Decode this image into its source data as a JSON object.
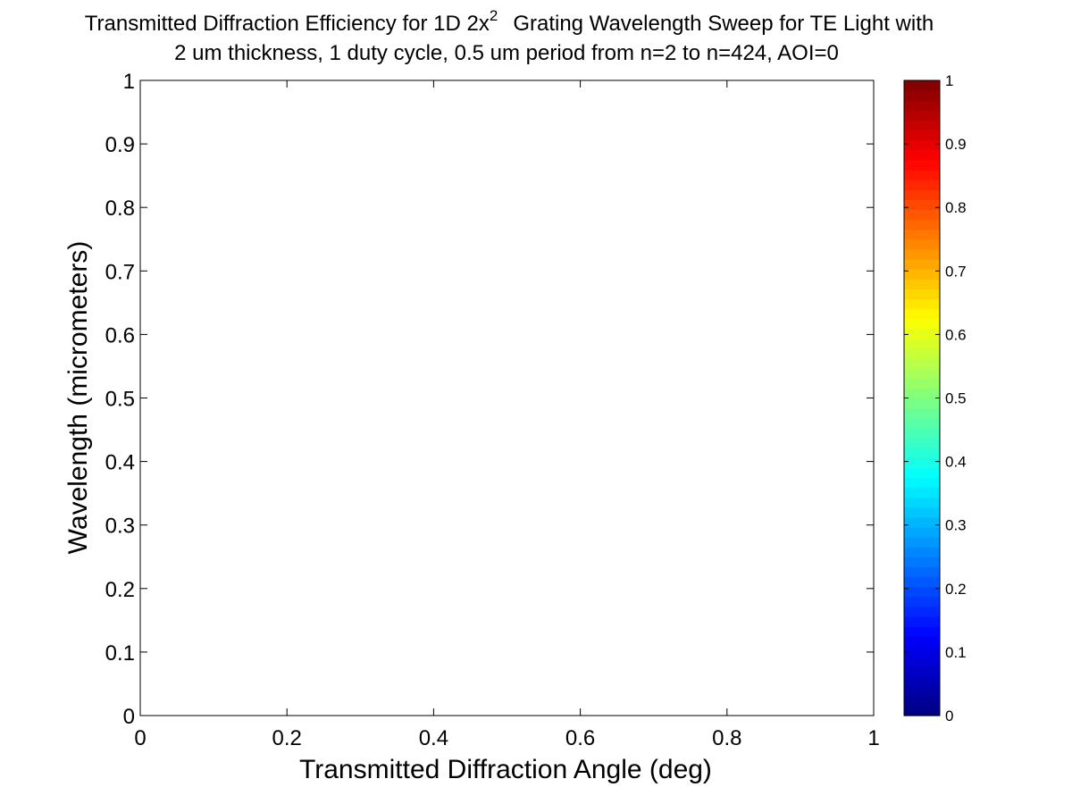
{
  "chart_data": {
    "type": "heatmap",
    "title": {
      "line1_before_sup": "Transmitted Diffraction Efficiency for 1D 2x",
      "line1_sup": "2",
      "line1_after_sup": "Grating Wavelength Sweep for TE Light with",
      "line2": "2 um thickness, 1 duty cycle, 0.5 um period from n=2 to n=424, AOI=0"
    },
    "xlabel": "Transmitted Diffraction Angle (deg)",
    "ylabel": "Wavelength (micrometers)",
    "xlim": [
      0,
      1
    ],
    "ylim": [
      0,
      1
    ],
    "xticks": [
      0,
      0.2,
      0.4,
      0.6,
      0.8,
      1
    ],
    "xtick_labels": [
      "0",
      "0.2",
      "0.4",
      "0.6",
      "0.8",
      "1"
    ],
    "yticks": [
      0,
      0.1,
      0.2,
      0.3,
      0.4,
      0.5,
      0.6,
      0.7,
      0.8,
      0.9,
      1
    ],
    "ytick_labels": [
      "0",
      "0.1",
      "0.2",
      "0.3",
      "0.4",
      "0.5",
      "0.6",
      "0.7",
      "0.8",
      "0.9",
      "1"
    ],
    "values": [],
    "grid": false,
    "colorbar": {
      "colormap": "jet",
      "range": [
        0,
        1
      ],
      "ticks": [
        0,
        0.1,
        0.2,
        0.3,
        0.4,
        0.5,
        0.6,
        0.7,
        0.8,
        0.9,
        1
      ],
      "tick_labels": [
        "0",
        "0.1",
        "0.2",
        "0.3",
        "0.4",
        "0.5",
        "0.6",
        "0.7",
        "0.8",
        "0.9",
        "1"
      ],
      "placement": "right"
    }
  }
}
